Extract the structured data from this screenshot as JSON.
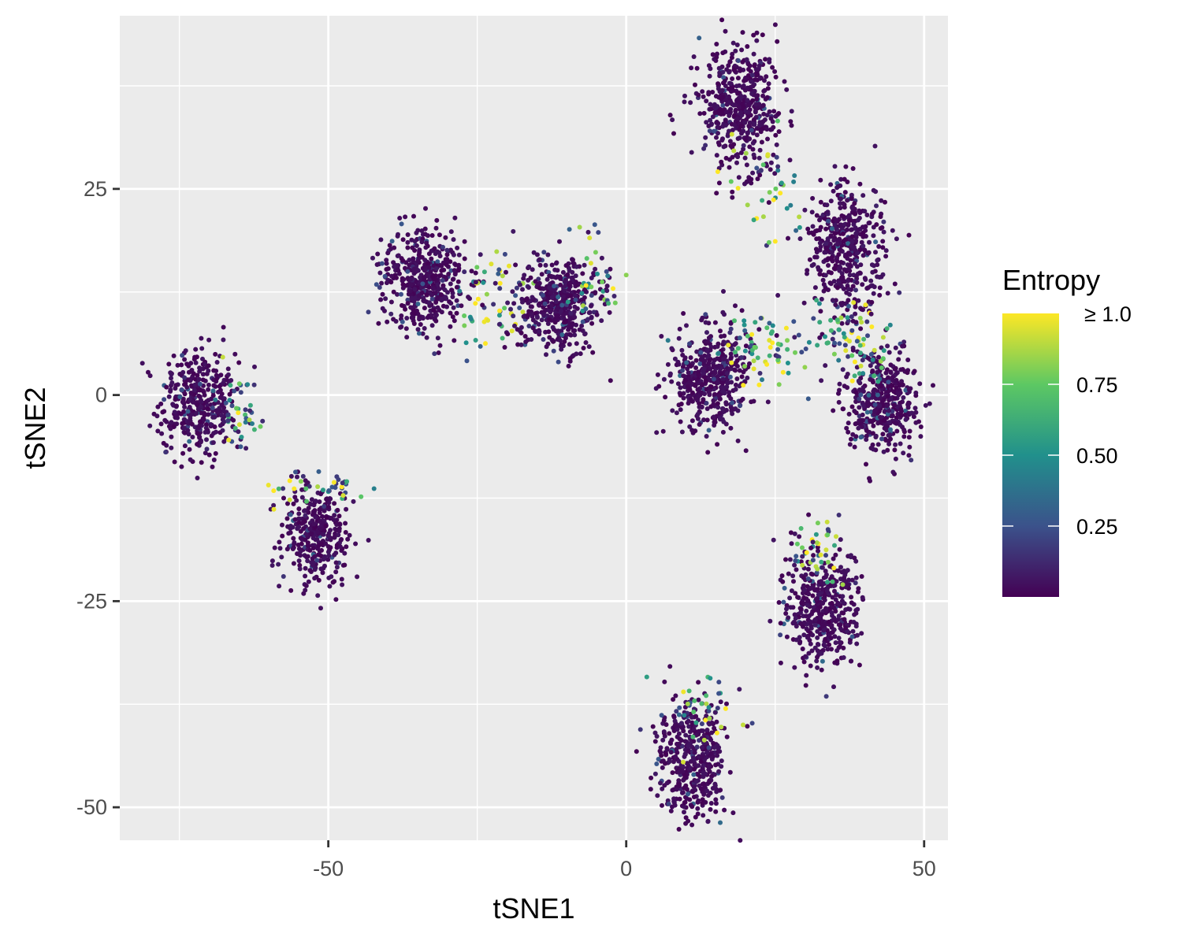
{
  "chart_data": {
    "type": "scatter",
    "title": "",
    "xlabel": "tSNE1",
    "ylabel": "tSNE2",
    "xlim": [
      -85,
      54
    ],
    "ylim": [
      -54,
      46
    ],
    "x_ticks": [
      -50,
      0,
      50
    ],
    "x_tick_labels": [
      "-50",
      "0",
      "50"
    ],
    "y_ticks": [
      -50,
      -25,
      0,
      25
    ],
    "y_tick_labels": [
      "-50",
      "-25",
      "0",
      "25"
    ],
    "x_minor_gridlines": [
      -75,
      -25,
      25
    ],
    "y_minor_gridlines": [
      -37.5,
      -12.5,
      12.5,
      37.5
    ],
    "grid": true,
    "panel_background": "#EBEBEB",
    "color_variable": "Entropy",
    "legend": {
      "title": "Entropy",
      "position": "right",
      "labels": [
        "0.25",
        "0.50",
        "0.75",
        "≥ 1.0"
      ],
      "breaks": [
        0.25,
        0.5,
        0.75,
        1.0
      ],
      "limits": [
        0,
        1.0
      ],
      "palette": [
        "#440154",
        "#3B528B",
        "#21908C",
        "#5DC863",
        "#FDE725"
      ]
    },
    "clusters": [
      {
        "cx": -72,
        "cy": -1,
        "sx": 3.2,
        "sy": 3.3,
        "n": 380,
        "tail": {
          "cx": -65,
          "cy": -2,
          "sx": 1.8,
          "sy": 2.2,
          "n": 45
        }
      },
      {
        "cx": -52,
        "cy": -17,
        "sx": 3.0,
        "sy": 3.2,
        "n": 340,
        "tail": {
          "cx": -51,
          "cy": -11,
          "sx": 4.0,
          "sy": 1.2,
          "n": 35
        }
      },
      {
        "cx": -34,
        "cy": 14,
        "sx": 3.5,
        "sy": 3.0,
        "n": 460,
        "tail": {
          "cx": -22,
          "cy": 12,
          "sx": 4.0,
          "sy": 3.0,
          "n": 70
        }
      },
      {
        "cx": -11,
        "cy": 11,
        "sx": 3.5,
        "sy": 3.0,
        "n": 440,
        "tail": {
          "cx": -6,
          "cy": 13,
          "sx": 2.5,
          "sy": 3.0,
          "n": 35
        }
      },
      {
        "cx": 19,
        "cy": 35,
        "sx": 3.3,
        "sy": 3.5,
        "n": 470,
        "tail": {
          "cx": 24,
          "cy": 25,
          "sx": 3.5,
          "sy": 4.0,
          "n": 40
        }
      },
      {
        "cx": 37,
        "cy": 18,
        "sx": 3.2,
        "sy": 4.0,
        "n": 440,
        "tail": {
          "cx": 37,
          "cy": 8,
          "sx": 2.5,
          "sy": 2.5,
          "n": 50
        }
      },
      {
        "cx": 14,
        "cy": 2,
        "sx": 3.2,
        "sy": 3.2,
        "n": 430,
        "tail": {
          "cx": 23,
          "cy": 6,
          "sx": 5.0,
          "sy": 2.0,
          "n": 80
        }
      },
      {
        "cx": 43,
        "cy": -1,
        "sx": 3.0,
        "sy": 3.0,
        "n": 400,
        "tail": {
          "cx": 40,
          "cy": 5,
          "sx": 2.0,
          "sy": 2.0,
          "n": 30
        }
      },
      {
        "cx": 33,
        "cy": -26,
        "sx": 3.2,
        "sy": 3.6,
        "n": 430,
        "tail": {
          "cx": 31,
          "cy": -19,
          "sx": 2.5,
          "sy": 2.5,
          "n": 45
        }
      },
      {
        "cx": 11,
        "cy": -44,
        "sx": 3.0,
        "sy": 3.5,
        "n": 410,
        "tail": {
          "cx": 13,
          "cy": -38,
          "sx": 3.5,
          "sy": 2.0,
          "n": 40
        }
      }
    ]
  }
}
